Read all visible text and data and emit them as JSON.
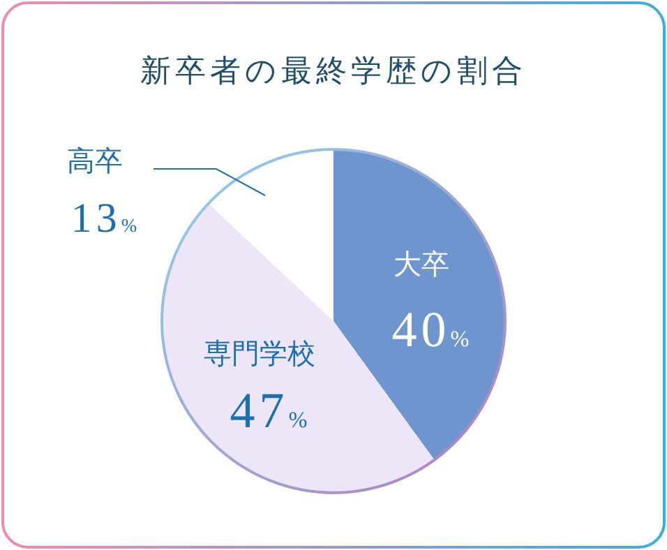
{
  "chart_data": {
    "type": "pie",
    "title": "新卒者の最終学歴の割合",
    "categories": [
      "大卒",
      "専門学校",
      "高卒"
    ],
    "values": [
      40,
      47,
      13
    ],
    "value_labels": [
      "40%",
      "47%",
      "13%"
    ],
    "colors": [
      "#6f95cf",
      "#ece6f8",
      "#ffffff"
    ]
  }
}
